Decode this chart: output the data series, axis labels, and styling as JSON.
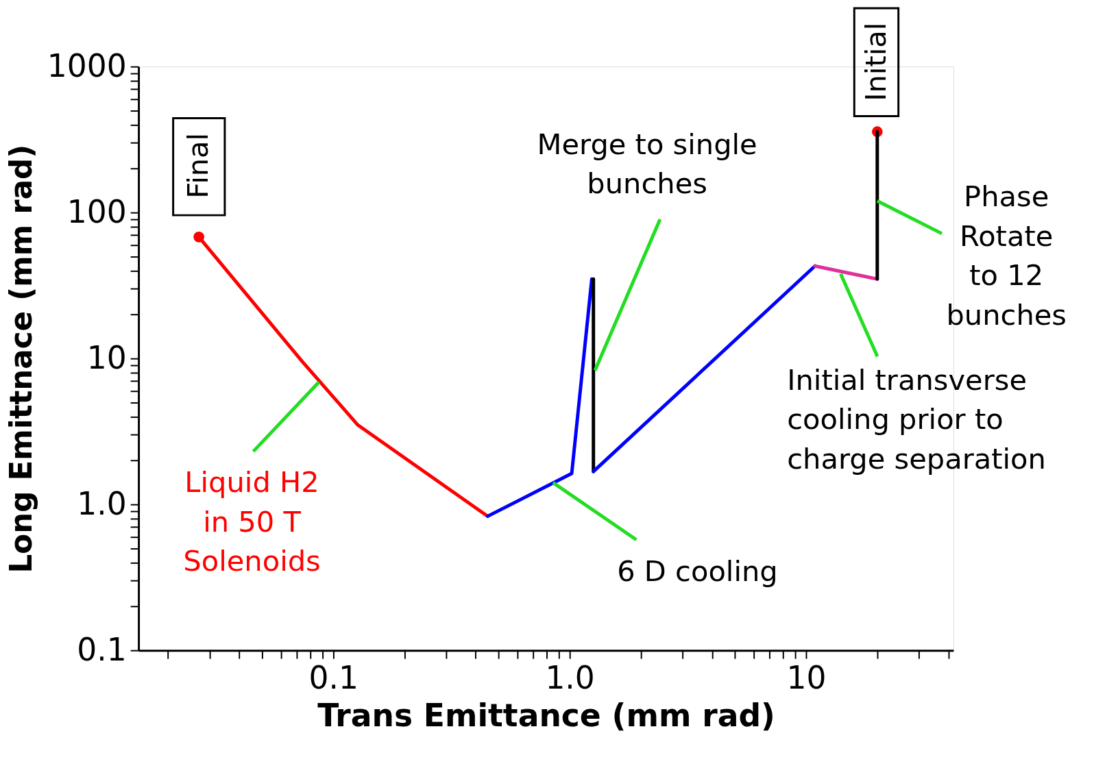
{
  "chart_data": {
    "type": "line",
    "xlabel": "Trans Emittance  (mm rad)",
    "ylabel": "Long Emittnace (mm rad)",
    "log": "xy",
    "grid": false,
    "line_style": "solid",
    "xlim": [
      0.015,
      42
    ],
    "ylim": [
      0.1,
      1000
    ],
    "xticks": [
      {
        "value": 0.02,
        "label": null
      },
      {
        "value": 0.03,
        "label": null
      },
      {
        "value": 0.04,
        "label": null
      },
      {
        "value": 0.05,
        "label": null
      },
      {
        "value": 0.06,
        "label": null
      },
      {
        "value": 0.07,
        "label": null
      },
      {
        "value": 0.08,
        "label": null
      },
      {
        "value": 0.09,
        "label": null
      },
      0.1,
      {
        "value": 0.2,
        "label": null
      },
      {
        "value": 0.3,
        "label": null
      },
      {
        "value": 0.4,
        "label": null
      },
      {
        "value": 0.5,
        "label": null
      },
      {
        "value": 0.6,
        "label": null
      },
      {
        "value": 0.7,
        "label": null
      },
      {
        "value": 0.8,
        "label": null
      },
      {
        "value": 0.9,
        "label": null
      },
      {
        "value": 1,
        "label": "1.0"
      },
      {
        "value": 2,
        "label": null
      },
      {
        "value": 3,
        "label": null
      },
      {
        "value": 4,
        "label": null
      },
      {
        "value": 5,
        "label": null
      },
      {
        "value": 6,
        "label": null
      },
      {
        "value": 7,
        "label": null
      },
      {
        "value": 8,
        "label": null
      },
      {
        "value": 9,
        "label": null
      },
      10,
      {
        "value": 20,
        "label": null
      },
      {
        "value": 30,
        "label": null
      },
      {
        "value": 40,
        "label": null
      }
    ],
    "yticks": [
      0.1,
      {
        "value": 0.2,
        "label": null
      },
      {
        "value": 0.3,
        "label": null
      },
      {
        "value": 0.4,
        "label": null
      },
      {
        "value": 0.5,
        "label": null
      },
      {
        "value": 0.6,
        "label": null
      },
      {
        "value": 0.7,
        "label": null
      },
      {
        "value": 0.8,
        "label": null
      },
      {
        "value": 0.9,
        "label": null
      },
      {
        "value": 1,
        "label": "1.0"
      },
      {
        "value": 2,
        "label": null
      },
      {
        "value": 3,
        "label": null
      },
      {
        "value": 4,
        "label": null
      },
      {
        "value": 5,
        "label": null
      },
      {
        "value": 6,
        "label": null
      },
      {
        "value": 7,
        "label": null
      },
      {
        "value": 8,
        "label": null
      },
      {
        "value": 9,
        "label": null
      },
      10,
      {
        "value": 20,
        "label": null
      },
      {
        "value": 30,
        "label": null
      },
      {
        "value": 40,
        "label": null
      },
      {
        "value": 50,
        "label": null
      },
      {
        "value": 60,
        "label": null
      },
      {
        "value": 70,
        "label": null
      },
      {
        "value": 80,
        "label": null
      },
      {
        "value": 90,
        "label": null
      },
      100,
      {
        "value": 200,
        "label": null
      },
      {
        "value": 300,
        "label": null
      },
      {
        "value": 400,
        "label": null
      },
      {
        "value": 500,
        "label": null
      },
      {
        "value": 600,
        "label": null
      },
      {
        "value": 700,
        "label": null
      },
      {
        "value": 800,
        "label": null
      },
      {
        "value": 900,
        "label": null
      },
      1000
    ],
    "series": [
      {
        "type": "scatter",
        "color": "#ff0000",
        "x": [
          0.027,
          20
        ],
        "values": [
          68,
          358
        ]
      },
      {
        "color": "#ff0000",
        "x": [
          0.027,
          0.074,
          0.127,
          0.45
        ],
        "values": [
          68,
          9.5,
          3.5,
          0.83
        ]
      },
      {
        "color": "#0000ff",
        "x": [
          0.45,
          1.02,
          1.24
        ],
        "values": [
          0.83,
          1.63,
          35
        ]
      },
      {
        "color": "#000000",
        "x": [
          1.26,
          1.26
        ],
        "values": [
          35,
          1.68
        ]
      },
      {
        "color": "#0000ff",
        "x": [
          1.26,
          10.9
        ],
        "values": [
          1.68,
          43
        ]
      },
      {
        "color": "#e0309a",
        "x": [
          10.9,
          20
        ],
        "values": [
          43,
          35
        ]
      },
      {
        "color": "#000000",
        "x": [
          20,
          20
        ],
        "values": [
          35,
          358
        ]
      }
    ],
    "annotations": [
      "Final",
      "Initial",
      {
        "text": "Merge to single\nbunches",
        "x": 1.28,
        "y": 8.3
      },
      {
        "text": "Phase\nRotate\nto 12\nbunches",
        "x": 20,
        "y": 120
      },
      {
        "text": "Initial transverse\ncooling prior to\ncharge separation",
        "x": 14,
        "y": 38
      },
      {
        "text": "6 D cooling",
        "x": 0.85,
        "y": 1.41
      },
      {
        "text": "Liquid H2\nin 50 T\nSolenoids",
        "x": 0.087,
        "y": 6.9
      }
    ]
  }
}
